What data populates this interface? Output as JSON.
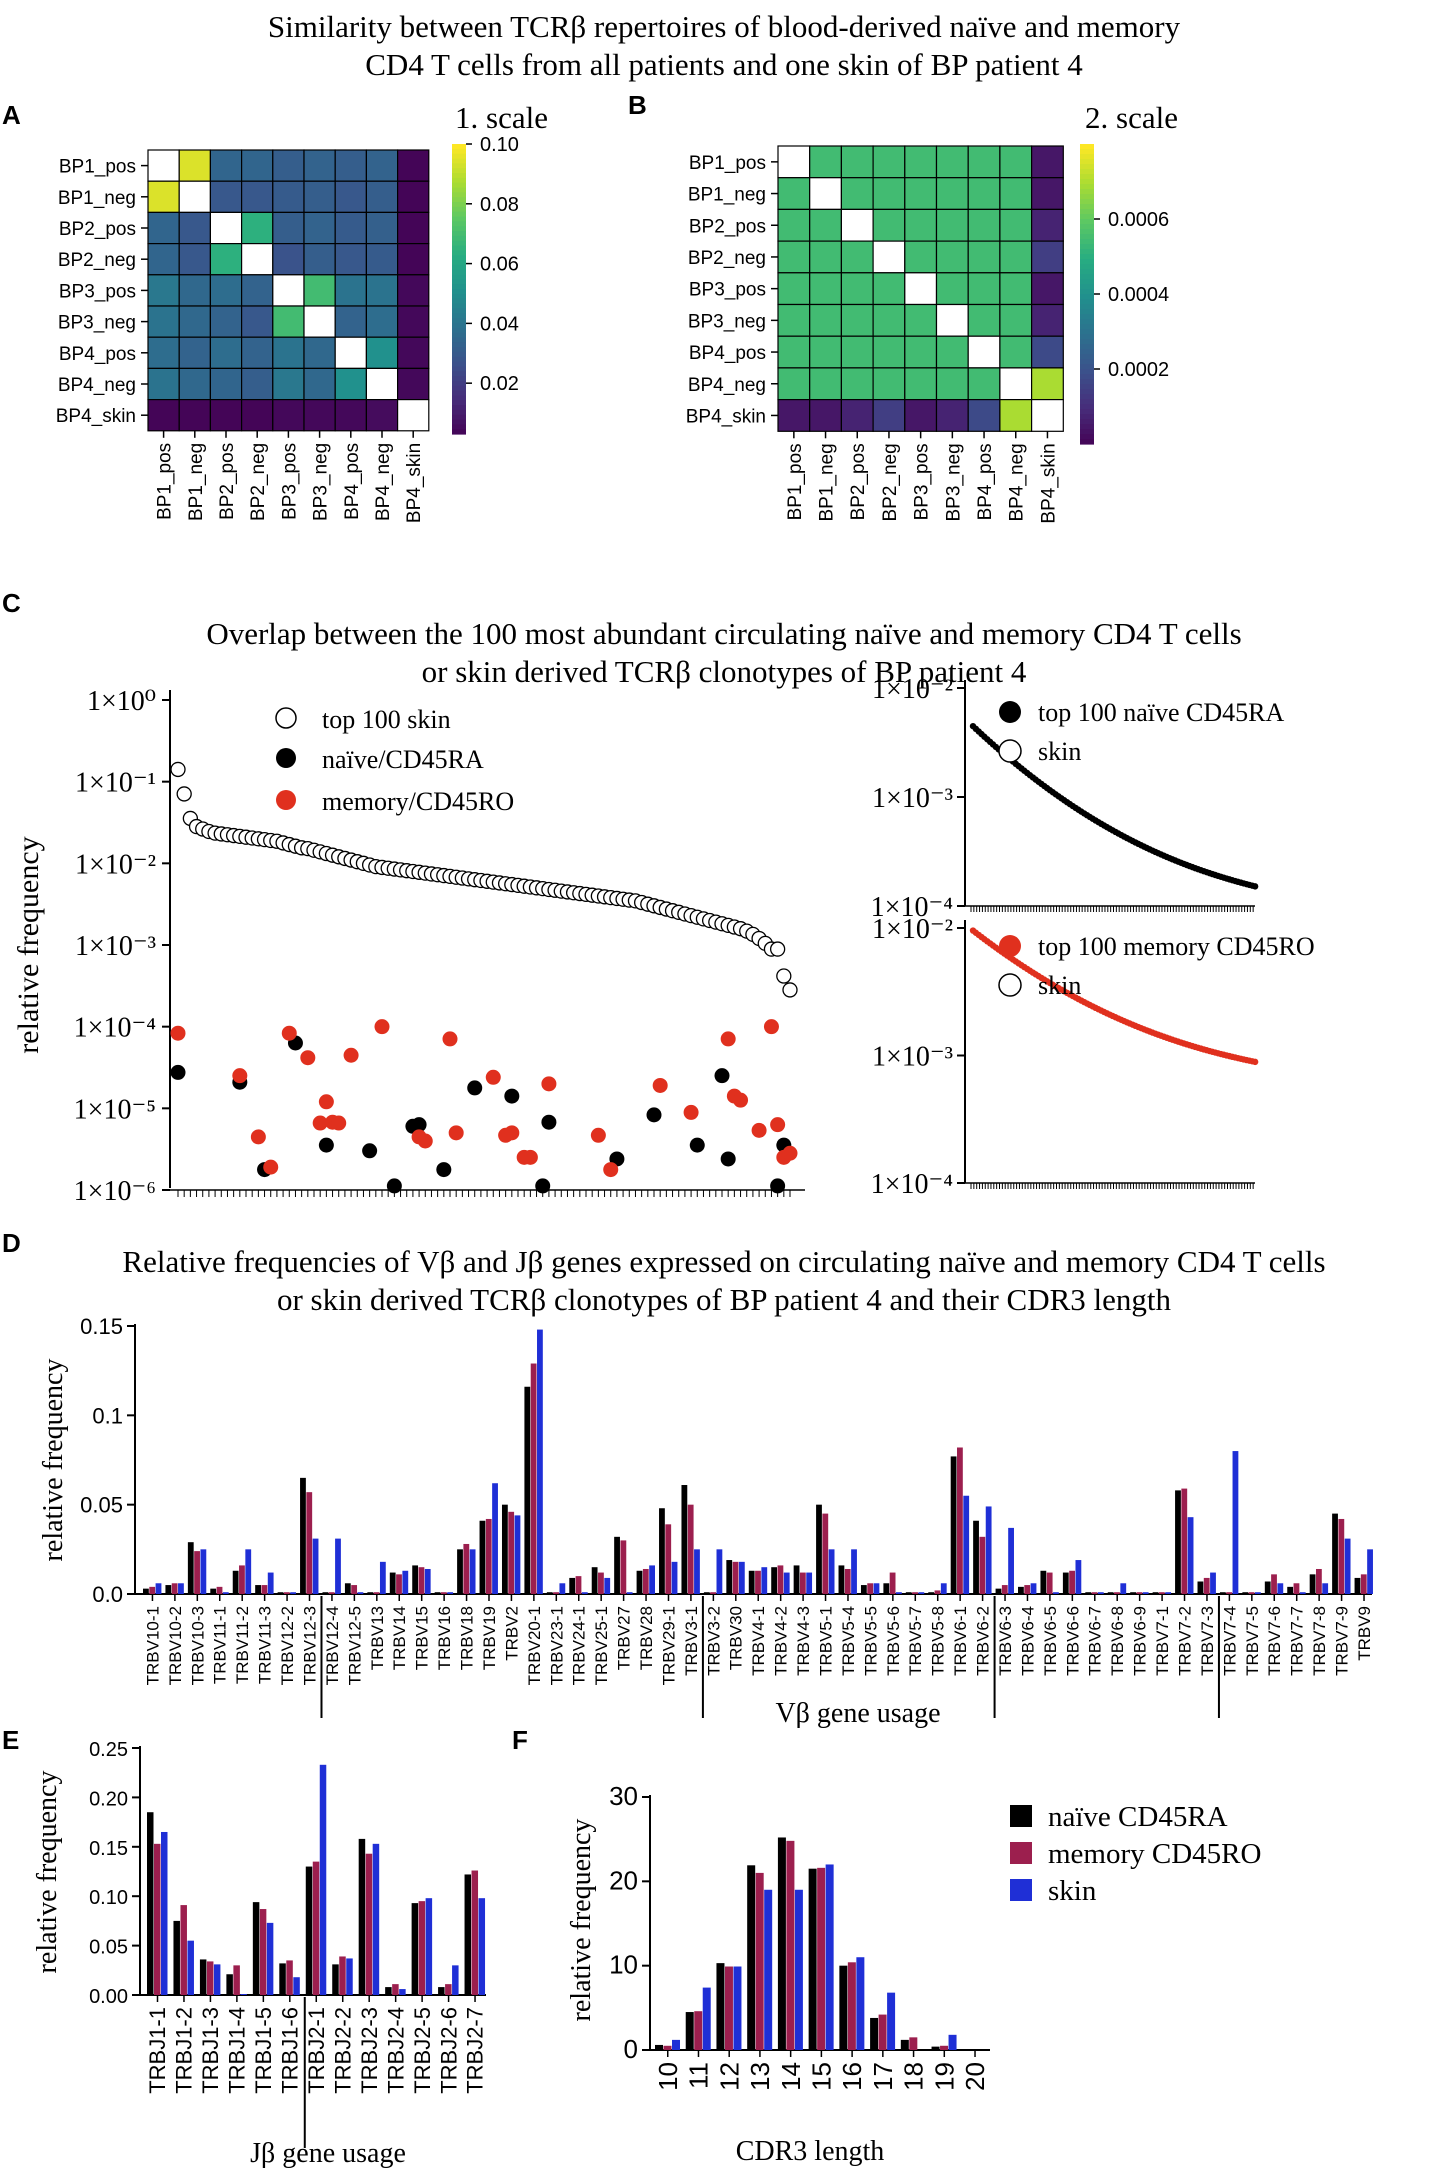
{
  "titles": {
    "top": [
      "Similarity between TCRβ repertoires of blood-derived naïve and memory",
      "CD4 T cells from all patients and one skin of BP patient 4"
    ],
    "c": [
      "Overlap between the 100 most abundant circulating naïve and memory CD4 T cells",
      "or skin derived  TCRβ clonotypes of BP patient 4"
    ],
    "d": [
      "Relative frequencies of Vβ and Jβ genes expressed on circulating naïve and memory CD4 T cells",
      "or skin derived  TCRβ clonotypes of BP patient 4 and their CDR3 length"
    ]
  },
  "panel_labels": {
    "a": "A",
    "b": "B",
    "c": "C",
    "d": "D",
    "e": "E",
    "f": "F"
  },
  "colors": {
    "naive": "#000000",
    "memory": "#9c1f4e",
    "skin": "#1f2fd6",
    "memory_dot": "#e0301e",
    "diag": "#ffffff"
  },
  "chart_data": [
    {
      "id": "A",
      "type": "heatmap",
      "scale_title": "1. scale",
      "rows": [
        "BP1_pos",
        "BP1_neg",
        "BP2_pos",
        "BP2_neg",
        "BP3_pos",
        "BP3_neg",
        "BP4_pos",
        "BP4_neg",
        "BP4_skin"
      ],
      "cols": [
        "BP1_pos",
        "BP1_neg",
        "BP2_pos",
        "BP2_neg",
        "BP3_pos",
        "BP3_neg",
        "BP4_pos",
        "BP4_neg",
        "BP4_skin"
      ],
      "scale_ticks": [
        "0.10",
        "0.08",
        "0.06",
        "0.04",
        "0.02"
      ],
      "scale_tick_values": [
        0.1,
        0.08,
        0.06,
        0.04,
        0.02
      ],
      "range": [
        0.003,
        0.1
      ],
      "values": [
        [
          null,
          0.095,
          0.035,
          0.035,
          0.032,
          0.034,
          0.032,
          0.034,
          0.004
        ],
        [
          0.095,
          null,
          0.03,
          0.03,
          0.031,
          0.032,
          0.03,
          0.032,
          0.004
        ],
        [
          0.035,
          0.03,
          null,
          0.065,
          0.032,
          0.034,
          0.031,
          0.033,
          0.004
        ],
        [
          0.035,
          0.03,
          0.065,
          null,
          0.028,
          0.032,
          0.03,
          0.031,
          0.004
        ],
        [
          0.042,
          0.036,
          0.038,
          0.034,
          null,
          0.07,
          0.04,
          0.04,
          0.005
        ],
        [
          0.04,
          0.036,
          0.034,
          0.03,
          0.07,
          null,
          0.034,
          0.038,
          0.005
        ],
        [
          0.038,
          0.034,
          0.038,
          0.034,
          0.04,
          0.036,
          null,
          0.052,
          0.005
        ],
        [
          0.04,
          0.036,
          0.035,
          0.032,
          0.042,
          0.036,
          0.052,
          null,
          0.005
        ],
        [
          0.004,
          0.004,
          0.004,
          0.004,
          0.005,
          0.005,
          0.005,
          0.006,
          null
        ]
      ]
    },
    {
      "id": "B",
      "type": "heatmap",
      "scale_title": "2. scale",
      "rows": [
        "BP1_pos",
        "BP1_neg",
        "BP2_pos",
        "BP2_neg",
        "BP3_pos",
        "BP3_neg",
        "BP4_pos",
        "BP4_neg",
        "BP4_skin"
      ],
      "cols": [
        "BP1_pos",
        "BP1_neg",
        "BP2_pos",
        "BP2_neg",
        "BP3_pos",
        "BP3_neg",
        "BP4_pos",
        "BP4_neg",
        "BP4_skin"
      ],
      "scale_ticks": [
        "0.0006",
        "0.0004",
        "0.0002"
      ],
      "scale_tick_values": [
        0.0006,
        0.0004,
        0.0002
      ],
      "range": [
        0.0,
        0.0008
      ],
      "values": [
        [
          null,
          0.00055,
          0.00055,
          0.00055,
          0.00055,
          0.00055,
          0.00055,
          0.00055,
          5e-05
        ],
        [
          0.00055,
          null,
          0.00055,
          0.00055,
          0.00055,
          0.00055,
          0.00055,
          0.00055,
          5e-05
        ],
        [
          0.00055,
          0.00055,
          null,
          0.00055,
          0.00055,
          0.00055,
          0.00055,
          0.00055,
          8e-05
        ],
        [
          0.00055,
          0.00055,
          0.00055,
          null,
          0.00055,
          0.00055,
          0.00055,
          0.00055,
          0.00015
        ],
        [
          0.00055,
          0.00055,
          0.00055,
          0.00055,
          null,
          0.00055,
          0.00055,
          0.00055,
          5e-05
        ],
        [
          0.00055,
          0.00055,
          0.00055,
          0.00055,
          0.00055,
          null,
          0.00055,
          0.00055,
          8e-05
        ],
        [
          0.00055,
          0.00055,
          0.00055,
          0.00055,
          0.00055,
          0.00055,
          null,
          0.00055,
          0.00018
        ],
        [
          0.00055,
          0.00055,
          0.00055,
          0.00055,
          0.00055,
          0.00055,
          0.00055,
          null,
          0.0007
        ],
        [
          5e-05,
          5e-05,
          8e-05,
          0.00015,
          5e-05,
          8e-05,
          0.00018,
          0.0007,
          null
        ]
      ]
    },
    {
      "id": "C-main",
      "type": "scatter",
      "scale": "log",
      "ylabel": "relative frequency",
      "y_ticks": [
        "1×10⁰",
        "1×10⁻¹",
        "1×10⁻²",
        "1×10⁻³",
        "1×10⁻⁴",
        "1×10⁻⁵",
        "1×10⁻⁶"
      ],
      "y_tick_exponents": [
        0,
        -1,
        -2,
        -3,
        -4,
        -5,
        -6
      ],
      "ylim_log": [
        -6,
        0
      ],
      "legend": [
        "top 100 skin",
        "naïve/CD45RA",
        "memory/CD45RO"
      ],
      "skin_log": [
        -0.85,
        -1.15,
        -1.45,
        -1.55,
        -1.58,
        -1.61,
        -1.63,
        -1.64,
        -1.65,
        -1.66,
        -1.67,
        -1.68,
        -1.69,
        -1.7,
        -1.71,
        -1.72,
        -1.73,
        -1.75,
        -1.77,
        -1.79,
        -1.81,
        -1.82,
        -1.84,
        -1.86,
        -1.88,
        -1.9,
        -1.92,
        -1.94,
        -1.96,
        -1.98,
        -2.0,
        -2.02,
        -2.04,
        -2.05,
        -2.06,
        -2.07,
        -2.08,
        -2.09,
        -2.1,
        -2.11,
        -2.12,
        -2.13,
        -2.14,
        -2.15,
        -2.16,
        -2.17,
        -2.18,
        -2.19,
        -2.2,
        -2.21,
        -2.22,
        -2.23,
        -2.24,
        -2.25,
        -2.26,
        -2.27,
        -2.28,
        -2.29,
        -2.3,
        -2.31,
        -2.32,
        -2.33,
        -2.34,
        -2.35,
        -2.36,
        -2.37,
        -2.38,
        -2.39,
        -2.4,
        -2.41,
        -2.42,
        -2.43,
        -2.44,
        -2.45,
        -2.46,
        -2.48,
        -2.5,
        -2.52,
        -2.54,
        -2.56,
        -2.58,
        -2.6,
        -2.62,
        -2.64,
        -2.66,
        -2.68,
        -2.7,
        -2.72,
        -2.74,
        -2.76,
        -2.78,
        -2.8,
        -2.83,
        -2.87,
        -2.92,
        -2.98,
        -3.05,
        -3.05,
        -3.38,
        -3.55
      ],
      "naive": [
        [
          1,
          -4.56
        ],
        [
          11,
          -4.68
        ],
        [
          15,
          -5.75
        ],
        [
          20,
          -4.2
        ],
        [
          25,
          -5.45
        ],
        [
          32,
          -5.52
        ],
        [
          36,
          -5.95
        ],
        [
          39,
          -5.22
        ],
        [
          40,
          -5.2
        ],
        [
          44,
          -5.75
        ],
        [
          49,
          -4.75
        ],
        [
          55,
          -4.85
        ],
        [
          60,
          -5.95
        ],
        [
          61,
          -5.17
        ],
        [
          72,
          -5.62
        ],
        [
          78,
          -5.08
        ],
        [
          85,
          -5.45
        ],
        [
          89,
          -4.6
        ],
        [
          90,
          -5.62
        ],
        [
          98,
          -5.95
        ],
        [
          99,
          -5.45
        ]
      ],
      "memory": [
        [
          1,
          -4.08
        ],
        [
          11,
          -4.6
        ],
        [
          14,
          -5.35
        ],
        [
          16,
          -5.72
        ],
        [
          19,
          -4.08
        ],
        [
          22,
          -4.38
        ],
        [
          24,
          -5.18
        ],
        [
          25,
          -4.92
        ],
        [
          26,
          -5.17
        ],
        [
          27,
          -5.18
        ],
        [
          29,
          -4.35
        ],
        [
          34,
          -4.0
        ],
        [
          40,
          -5.35
        ],
        [
          41,
          -5.4
        ],
        [
          45,
          -4.15
        ],
        [
          46,
          -5.3
        ],
        [
          52,
          -4.62
        ],
        [
          54,
          -5.33
        ],
        [
          55,
          -5.3
        ],
        [
          57,
          -5.6
        ],
        [
          58,
          -5.6
        ],
        [
          61,
          -4.7
        ],
        [
          69,
          -5.33
        ],
        [
          71,
          -5.75
        ],
        [
          79,
          -4.72
        ],
        [
          84,
          -5.05
        ],
        [
          90,
          -4.15
        ],
        [
          91,
          -4.85
        ],
        [
          92,
          -4.9
        ],
        [
          95,
          -5.27
        ],
        [
          97,
          -4.0
        ],
        [
          98,
          -5.2
        ],
        [
          99,
          -5.6
        ],
        [
          100,
          -5.55
        ]
      ]
    },
    {
      "id": "C-naive",
      "type": "scatter",
      "scale": "log",
      "y_ticks": [
        "1×10⁻²",
        "1×10⁻³",
        "1×10⁻⁴"
      ],
      "y_tick_exponents": [
        -2,
        -3,
        -4
      ],
      "ylim_log": [
        -4,
        -2
      ],
      "legend": [
        "top 100 naïve CD45RA",
        "skin"
      ],
      "range_log": [
        -2.35,
        -3.82
      ]
    },
    {
      "id": "C-memory",
      "type": "scatter",
      "scale": "log",
      "y_ticks": [
        "1×10⁻²",
        "1×10⁻³",
        "1×10⁻⁴"
      ],
      "y_tick_exponents": [
        -2,
        -3,
        -4
      ],
      "ylim_log": [
        -4,
        -2
      ],
      "legend": [
        "top 100 memory CD45RO",
        "skin"
      ],
      "range_log": [
        -2.02,
        -3.05
      ]
    },
    {
      "id": "D",
      "type": "bar",
      "ylabel": "relative frequency",
      "xlabel": "Vβ gene usage",
      "ylim": [
        0,
        0.15
      ],
      "y_ticks": [
        "0.0",
        "0.05",
        "0.1",
        "0.15"
      ],
      "y_tick_values": [
        0,
        0.05,
        0.1,
        0.15
      ],
      "categories": [
        "TRBV10-1",
        "TRBV10-2",
        "TRBV10-3",
        "TRBV11-1",
        "TRBV11-2",
        "TRBV11-3",
        "TRBV12-2",
        "TRBV12-3",
        "TRBV12-4",
        "TRBV12-5",
        "TRBV13",
        "TRBV14",
        "TRBV15",
        "TRBV16",
        "TRBV18",
        "TRBV19",
        "TRBV2",
        "TRBV20-1",
        "TRBV23-1",
        "TRBV24-1",
        "TRBV25-1",
        "TRBV27",
        "TRBV28",
        "TRBV29-1",
        "TRBV3-1",
        "TRBV3-2",
        "TRBV30",
        "TRBV4-1",
        "TRBV4-2",
        "TRBV4-3",
        "TRBV5-1",
        "TRBV5-4",
        "TRBV5-5",
        "TRBV5-6",
        "TRBV5-7",
        "TRBV5-8",
        "TRBV6-1",
        "TRBV6-2",
        "TRBV6-3",
        "TRBV6-4",
        "TRBV6-5",
        "TRBV6-6",
        "TRBV6-7",
        "TRBV6-8",
        "TRBV6-9",
        "TRBV7-1",
        "TRBV7-2",
        "TRBV7-3",
        "TRBV7-4",
        "TRBV7-5",
        "TRBV7-6",
        "TRBV7-7",
        "TRBV7-8",
        "TRBV7-9",
        "TRBV9"
      ],
      "separators_after": [
        "TRBV12-3",
        "TRBV3-1",
        "TRBV6-2",
        "TRBV7-3"
      ],
      "series": [
        {
          "name": "naïve CD45RA",
          "values": [
            0.003,
            0.005,
            0.029,
            0.003,
            0.013,
            0.005,
            0.001,
            0.065,
            0.001,
            0.006,
            0.001,
            0.012,
            0.016,
            0.001,
            0.025,
            0.041,
            0.05,
            0.116,
            0.001,
            0.009,
            0.015,
            0.032,
            0.013,
            0.048,
            0.061,
            0.001,
            0.019,
            0.013,
            0.015,
            0.016,
            0.05,
            0.016,
            0.005,
            0.006,
            0.001,
            0.001,
            0.077,
            0.041,
            0.003,
            0.004,
            0.013,
            0.012,
            0.001,
            0.001,
            0.001,
            0.001,
            0.058,
            0.007,
            0.001,
            0.001,
            0.007,
            0.004,
            0.011,
            0.045,
            0.009
          ]
        },
        {
          "name": "memory CD45RO",
          "values": [
            0.004,
            0.006,
            0.024,
            0.004,
            0.016,
            0.005,
            0.001,
            0.057,
            0.001,
            0.005,
            0.001,
            0.011,
            0.015,
            0.001,
            0.028,
            0.042,
            0.046,
            0.129,
            0.001,
            0.01,
            0.012,
            0.03,
            0.014,
            0.039,
            0.05,
            0.001,
            0.018,
            0.013,
            0.016,
            0.012,
            0.045,
            0.014,
            0.006,
            0.012,
            0.001,
            0.002,
            0.082,
            0.032,
            0.005,
            0.005,
            0.012,
            0.013,
            0.001,
            0.001,
            0.001,
            0.001,
            0.059,
            0.009,
            0.001,
            0.001,
            0.011,
            0.006,
            0.014,
            0.042,
            0.011
          ]
        },
        {
          "name": "skin",
          "values": [
            0.006,
            0.006,
            0.025,
            0.001,
            0.025,
            0.012,
            0.001,
            0.031,
            0.031,
            0.001,
            0.018,
            0.013,
            0.014,
            0.001,
            0.025,
            0.062,
            0.044,
            0.148,
            0.006,
            0.001,
            0.009,
            0.001,
            0.016,
            0.018,
            0.025,
            0.025,
            0.018,
            0.015,
            0.012,
            0.012,
            0.025,
            0.025,
            0.006,
            0.001,
            0.001,
            0.006,
            0.055,
            0.049,
            0.037,
            0.006,
            0.001,
            0.019,
            0.001,
            0.006,
            0.001,
            0.001,
            0.043,
            0.012,
            0.08,
            0.001,
            0.006,
            0.001,
            0.006,
            0.031,
            0.025
          ]
        }
      ]
    },
    {
      "id": "E",
      "type": "bar",
      "ylabel": "relative frequency",
      "xlabel": "Jβ gene usage",
      "ylim": [
        0,
        0.25
      ],
      "y_ticks": [
        "0.00",
        "0.05",
        "0.10",
        "0.15",
        "0.20",
        "0.25"
      ],
      "y_tick_values": [
        0,
        0.05,
        0.1,
        0.15,
        0.2,
        0.25
      ],
      "categories": [
        "TRBJ1-1",
        "TRBJ1-2",
        "TRBJ1-3",
        "TRBJ1-4",
        "TRBJ1-5",
        "TRBJ1-6",
        "TRBJ2-1",
        "TRBJ2-2",
        "TRBJ2-3",
        "TRBJ2-4",
        "TRBJ2-5",
        "TRBJ2-6",
        "TRBJ2-7"
      ],
      "separators_after": [
        "TRBJ1-6"
      ],
      "series": [
        {
          "name": "naïve CD45RA",
          "values": [
            0.185,
            0.075,
            0.036,
            0.021,
            0.094,
            0.032,
            0.13,
            0.031,
            0.158,
            0.008,
            0.093,
            0.008,
            0.122
          ]
        },
        {
          "name": "memory CD45RO",
          "values": [
            0.153,
            0.091,
            0.034,
            0.03,
            0.087,
            0.035,
            0.135,
            0.039,
            0.143,
            0.011,
            0.095,
            0.011,
            0.126
          ]
        },
        {
          "name": "skin",
          "values": [
            0.165,
            0.055,
            0.031,
            0.001,
            0.073,
            0.018,
            0.233,
            0.037,
            0.153,
            0.006,
            0.098,
            0.03,
            0.098
          ]
        }
      ]
    },
    {
      "id": "F",
      "type": "bar",
      "ylabel": "relative frequency",
      "xlabel": "CDR3 length",
      "ylim": [
        0,
        30
      ],
      "y_ticks": [
        "0",
        "10",
        "20",
        "30"
      ],
      "y_tick_values": [
        0,
        10,
        20,
        30
      ],
      "categories": [
        "10",
        "11",
        "12",
        "13",
        "14",
        "15",
        "16",
        "17",
        "18",
        "19",
        "20"
      ],
      "legend": [
        "naïve CD45RA",
        "memory CD45RO",
        "skin"
      ],
      "series": [
        {
          "name": "naïve CD45RA",
          "values": [
            0.6,
            4.5,
            10.3,
            21.9,
            25.2,
            21.5,
            10.0,
            3.8,
            1.2,
            0.4,
            0.0
          ]
        },
        {
          "name": "memory CD45RO",
          "values": [
            0.5,
            4.6,
            9.9,
            21.0,
            24.8,
            21.6,
            10.4,
            4.2,
            1.5,
            0.5,
            0.0
          ]
        },
        {
          "name": "skin",
          "values": [
            1.2,
            7.4,
            9.9,
            19.0,
            19.0,
            22.0,
            11.0,
            6.8,
            0.0,
            1.8,
            0.0
          ]
        }
      ]
    }
  ]
}
